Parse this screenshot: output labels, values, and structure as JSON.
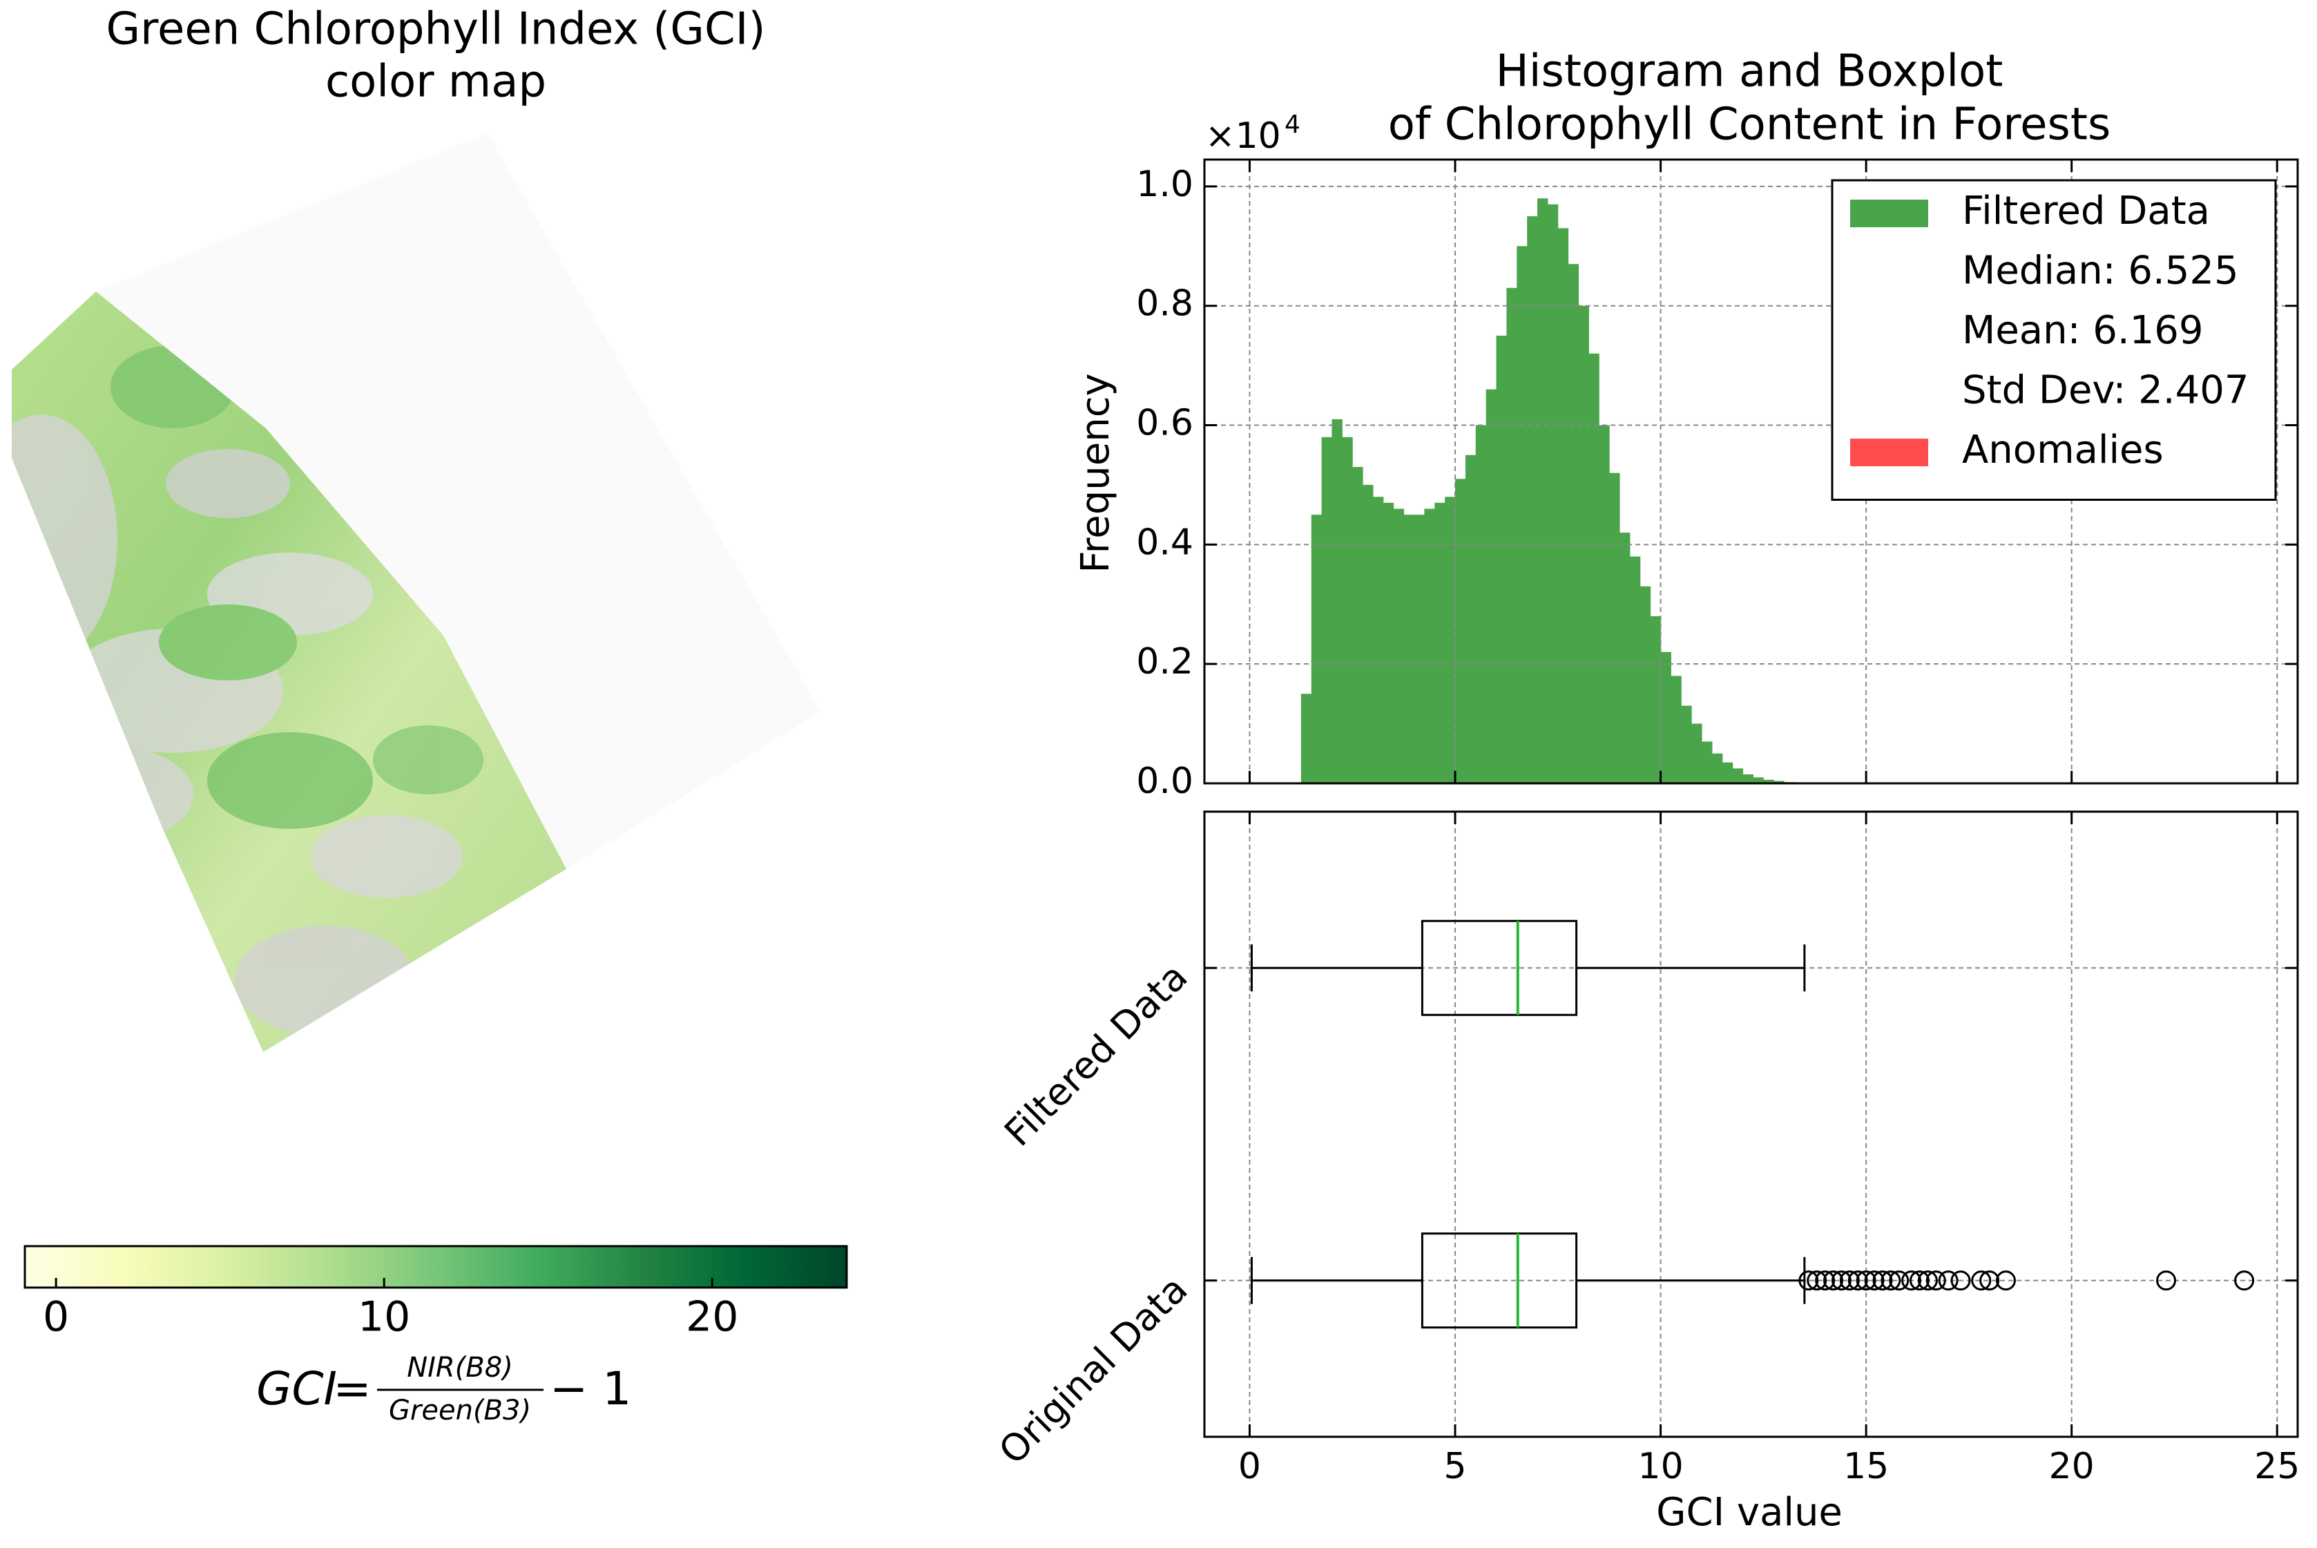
{
  "chart_data": [
    {
      "type": "colorbar",
      "title": [
        "Green Chlorophyll Index (GCI)",
        "color map"
      ],
      "colormap": [
        "#ffffe5",
        "#f7fcb9",
        "#d9f0a3",
        "#addd8e",
        "#78c679",
        "#41ab5d",
        "#238443",
        "#006837",
        "#004529"
      ],
      "xlim": [
        -0.95,
        24.1
      ],
      "xticks": [
        0,
        10,
        20
      ],
      "formula": {
        "lhs": "GCI",
        "operator": "=",
        "numerator": "NIR(B8)",
        "denominator": "Green(B3)",
        "rhs": "− 1"
      }
    },
    {
      "type": "histogram",
      "title": [
        "Histogram and Boxplot",
        "of Chlorophyll Content in Forests"
      ],
      "ylabel": "Frequency",
      "y_multiplier": {
        "base": "×10",
        "exponent": "4"
      },
      "color": "#4aa54a",
      "bins": [
        1.25,
        1.5,
        1.75,
        2.0,
        2.25,
        2.5,
        2.75,
        3.0,
        3.25,
        3.5,
        3.75,
        4.0,
        4.25,
        4.5,
        4.75,
        5.0,
        5.25,
        5.5,
        5.75,
        6.0,
        6.25,
        6.5,
        6.75,
        7.0,
        7.25,
        7.5,
        7.75,
        8.0,
        8.25,
        8.5,
        8.75,
        9.0,
        9.25,
        9.5,
        9.75,
        10.0,
        10.25,
        10.5,
        10.75,
        11.0,
        11.25,
        11.5,
        11.75,
        12.0,
        12.25,
        12.5,
        12.75,
        13.0,
        13.25,
        13.5,
        13.75
      ],
      "values": [
        0.15,
        0.45,
        0.58,
        0.61,
        0.58,
        0.53,
        0.5,
        0.48,
        0.47,
        0.46,
        0.45,
        0.45,
        0.46,
        0.47,
        0.48,
        0.51,
        0.55,
        0.6,
        0.66,
        0.75,
        0.83,
        0.9,
        0.95,
        0.98,
        0.97,
        0.93,
        0.87,
        0.8,
        0.72,
        0.6,
        0.52,
        0.42,
        0.38,
        0.33,
        0.28,
        0.22,
        0.18,
        0.13,
        0.1,
        0.07,
        0.05,
        0.035,
        0.025,
        0.015,
        0.01,
        0.006,
        0.004,
        0.002,
        0.001,
        0.0005
      ],
      "xlim": [
        -1.1,
        25.5
      ],
      "xticks": [
        0,
        5,
        10,
        15,
        20,
        25
      ],
      "ylim": [
        0,
        1.045
      ],
      "yticks": [
        {
          "value": 0,
          "label": "0.0"
        },
        0.2,
        0.4,
        0.6,
        0.8,
        {
          "value": 1,
          "label": "1.0"
        }
      ],
      "grid": true,
      "legend": {
        "position": "upper right",
        "entries": [
          {
            "label": "Filtered Data",
            "color": "#4aa54a"
          },
          {
            "label": "Median: 6.525"
          },
          {
            "label": "Mean: 6.169"
          },
          {
            "label": "Std Dev: 2.407"
          },
          {
            "label": "Anomalies",
            "color": "#ff4d4d"
          }
        ]
      }
    },
    {
      "type": "boxplot",
      "categories": [
        "Original Data",
        "Filtered Data"
      ],
      "boxes": [
        {
          "whislo": 0.05,
          "q1": 4.2,
          "median": 6.525,
          "q3": 7.95,
          "whishi": 13.5,
          "outliers": [
            13.6,
            13.8,
            14.0,
            14.2,
            14.4,
            14.6,
            14.8,
            15.0,
            15.2,
            15.4,
            15.6,
            15.8,
            16.1,
            16.3,
            16.5,
            16.7,
            17.0,
            17.3,
            17.8,
            18.0,
            18.4,
            22.3,
            24.2
          ]
        },
        {
          "whislo": 0.05,
          "q1": 4.2,
          "median": 6.525,
          "q3": 7.95,
          "whishi": 13.5,
          "outliers": []
        }
      ],
      "median_color": "#22bb33",
      "xlim": [
        -1.1,
        25.5
      ],
      "xticks": [
        0,
        5,
        10,
        15,
        20,
        25
      ],
      "xlabel": "GCI value",
      "grid": true
    }
  ]
}
